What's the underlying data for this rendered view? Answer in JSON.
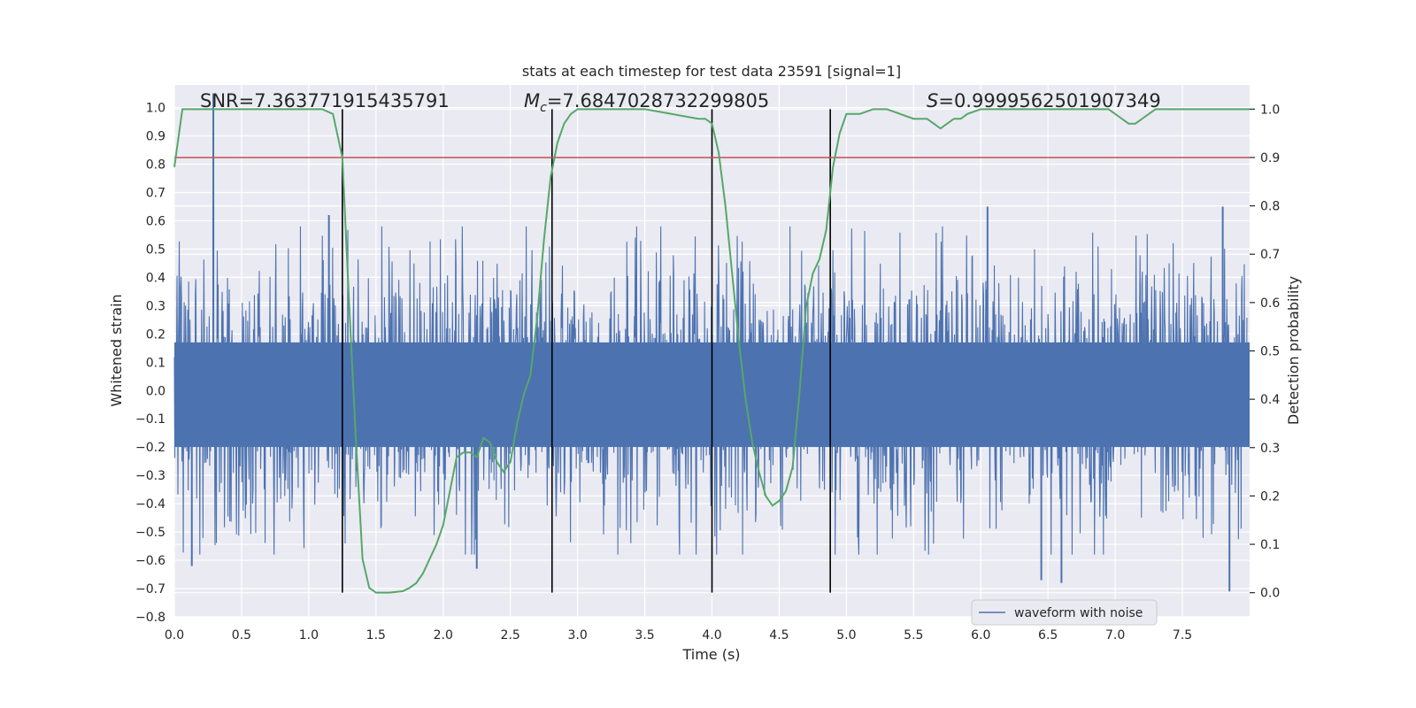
{
  "chart_data": {
    "type": "line",
    "title": "stats at each timestep for test data 23591 [signal=1]",
    "xlabel": "Time (s)",
    "ylabel_left": "Whitened strain",
    "ylabel_right": "Detection probability",
    "xlim": [
      0.0,
      8.0
    ],
    "ylim_left": [
      -0.8,
      1.08
    ],
    "ylim_right": [
      -0.05,
      1.05
    ],
    "x_ticks": [
      0.0,
      0.5,
      1.0,
      1.5,
      2.0,
      2.5,
      3.0,
      3.5,
      4.0,
      4.5,
      5.0,
      5.5,
      6.0,
      6.5,
      7.0,
      7.5
    ],
    "x_tick_labels": [
      "0.0",
      "0.5",
      "1.0",
      "1.5",
      "2.0",
      "2.5",
      "3.0",
      "3.5",
      "4.0",
      "4.5",
      "5.0",
      "5.5",
      "6.0",
      "6.5",
      "7.0",
      "7.5"
    ],
    "y_left_ticks": [
      1.0,
      0.9,
      0.8,
      0.7,
      0.6,
      0.5,
      0.4,
      0.3,
      0.2,
      0.1,
      0.0,
      -0.1,
      -0.2,
      -0.3,
      -0.4,
      -0.5,
      -0.6,
      -0.7,
      -0.8
    ],
    "y_left_tick_labels": [
      "1.0",
      "0.9",
      "0.8",
      "0.7",
      "0.6",
      "0.5",
      "0.4",
      "0.3",
      "0.2",
      "0.1",
      "0.0",
      "−0.1",
      "−0.2",
      "−0.3",
      "−0.4",
      "−0.5",
      "−0.6",
      "−0.7",
      "−0.8"
    ],
    "y_right_ticks": [
      1.0,
      0.9,
      0.8,
      0.7,
      0.6,
      0.5,
      0.4,
      0.3,
      0.2,
      0.1,
      0.0
    ],
    "y_right_tick_labels": [
      "1.0",
      "0.9",
      "0.8",
      "0.7",
      "0.6",
      "0.5",
      "0.4",
      "0.3",
      "0.2",
      "0.1",
      "0.0"
    ],
    "grid": true,
    "annotations": {
      "snr": "SNR=7.363771915435791",
      "mc_symbol": "M",
      "mc_subscript": "c",
      "mc_value": "=7.6847028732299805",
      "s_symbol": "S",
      "s_value": "=0.9999562501907349"
    },
    "legend": {
      "placement": "lower-right",
      "entries": [
        "waveform with noise"
      ]
    },
    "series": [
      {
        "name": "waveform with noise",
        "axis": "left",
        "color": "#4c72b0",
        "kind": "noise",
        "typical_amplitude": 0.3,
        "spikes": [
          {
            "x": 0.29,
            "y": 1.05
          },
          {
            "x": 0.29,
            "y": 0.65
          },
          {
            "x": 0.13,
            "y": -0.62
          },
          {
            "x": 1.15,
            "y": 0.62
          },
          {
            "x": 2.25,
            "y": -0.63
          },
          {
            "x": 6.05,
            "y": 0.65
          },
          {
            "x": 6.45,
            "y": -0.67
          },
          {
            "x": 6.6,
            "y": -0.68
          },
          {
            "x": 7.8,
            "y": 0.65
          },
          {
            "x": 7.85,
            "y": -0.71
          }
        ]
      },
      {
        "name": "detection probability",
        "axis": "right",
        "color": "#55a868",
        "x": [
          0.0,
          0.06,
          0.2,
          0.5,
          0.8,
          1.1,
          1.18,
          1.25,
          1.3,
          1.35,
          1.4,
          1.45,
          1.5,
          1.6,
          1.7,
          1.75,
          1.8,
          1.85,
          1.9,
          1.95,
          2.0,
          2.05,
          2.1,
          2.15,
          2.2,
          2.25,
          2.3,
          2.35,
          2.4,
          2.45,
          2.5,
          2.55,
          2.6,
          2.65,
          2.7,
          2.75,
          2.8,
          2.85,
          2.9,
          2.95,
          3.0,
          3.2,
          3.5,
          3.7,
          3.9,
          3.95,
          4.0,
          4.05,
          4.1,
          4.15,
          4.2,
          4.25,
          4.3,
          4.35,
          4.4,
          4.45,
          4.5,
          4.55,
          4.6,
          4.65,
          4.7,
          4.75,
          4.8,
          4.85,
          4.9,
          4.95,
          5.0,
          5.1,
          5.2,
          5.3,
          5.4,
          5.5,
          5.6,
          5.65,
          5.7,
          5.75,
          5.8,
          5.85,
          5.9,
          6.0,
          6.2,
          6.5,
          6.8,
          6.95,
          7.05,
          7.1,
          7.15,
          7.2,
          7.3,
          7.4,
          7.6,
          8.0
        ],
        "y": [
          0.88,
          1.0,
          1.0,
          1.0,
          1.0,
          1.0,
          0.99,
          0.9,
          0.6,
          0.32,
          0.07,
          0.01,
          0.0,
          0.0,
          0.003,
          0.01,
          0.02,
          0.04,
          0.07,
          0.1,
          0.14,
          0.21,
          0.28,
          0.29,
          0.29,
          0.28,
          0.32,
          0.31,
          0.27,
          0.25,
          0.27,
          0.35,
          0.41,
          0.45,
          0.57,
          0.73,
          0.86,
          0.93,
          0.97,
          0.99,
          1.0,
          1.0,
          1.0,
          0.99,
          0.98,
          0.98,
          0.97,
          0.91,
          0.8,
          0.66,
          0.52,
          0.4,
          0.31,
          0.25,
          0.2,
          0.18,
          0.19,
          0.21,
          0.26,
          0.41,
          0.59,
          0.66,
          0.69,
          0.75,
          0.88,
          0.95,
          0.99,
          0.99,
          1.0,
          1.0,
          0.99,
          0.98,
          0.98,
          0.97,
          0.96,
          0.97,
          0.98,
          0.98,
          0.99,
          1.0,
          1.0,
          1.0,
          1.0,
          1.0,
          0.98,
          0.97,
          0.97,
          0.98,
          1.0,
          1.0,
          1.0,
          1.0
        ]
      }
    ],
    "vertical_lines": [
      1.25,
      2.81,
      4.0,
      4.88
    ],
    "threshold": {
      "axis": "right",
      "value": 0.9,
      "color": "#c44e52"
    }
  }
}
